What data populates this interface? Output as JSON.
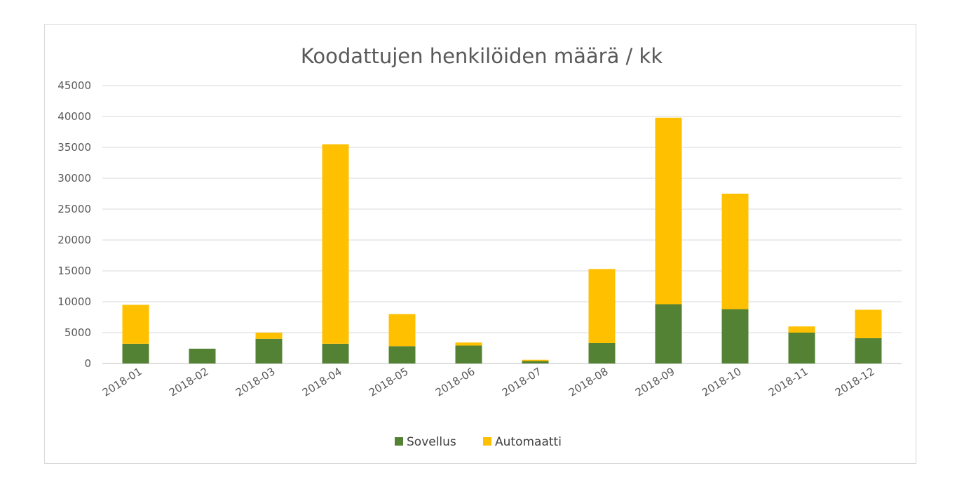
{
  "chart_data": {
    "type": "bar",
    "stacked": true,
    "title": "Koodattujen henkilöiden määrä / kk",
    "xlabel": "",
    "ylabel": "",
    "ylim": [
      0,
      45000
    ],
    "yticks": [
      0,
      5000,
      10000,
      15000,
      20000,
      25000,
      30000,
      35000,
      40000,
      45000
    ],
    "grid": true,
    "legend_position": "bottom",
    "categories": [
      "2018-01",
      "2018-02",
      "2018-03",
      "2018-04",
      "2018-05",
      "2018-06",
      "2018-07",
      "2018-08",
      "2018-09",
      "2018-10",
      "2018-11",
      "2018-12"
    ],
    "series": [
      {
        "name": "Sovellus",
        "color": "#548235",
        "values": [
          3200,
          2400,
          4000,
          3200,
          2800,
          2900,
          400,
          3300,
          9600,
          8800,
          5000,
          4100
        ]
      },
      {
        "name": "Automaatti",
        "color": "#ffc000",
        "values": [
          6300,
          0,
          1000,
          32300,
          5200,
          500,
          200,
          12000,
          30200,
          18700,
          1000,
          4600
        ]
      }
    ]
  }
}
